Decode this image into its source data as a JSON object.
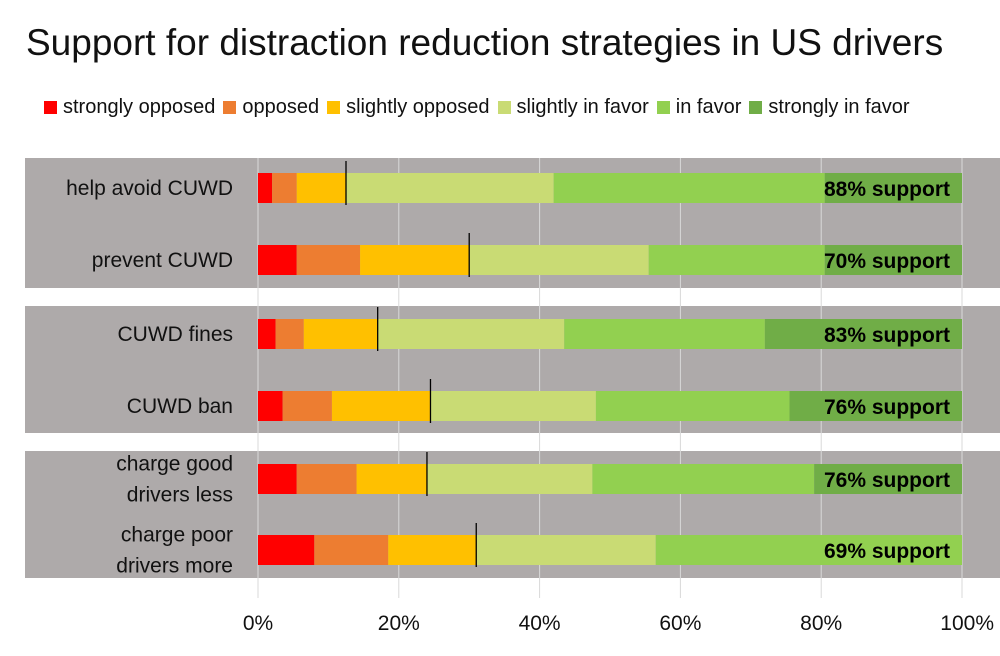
{
  "chart_data": {
    "type": "bar",
    "stacked": true,
    "orientation": "horizontal",
    "title": "Support for distraction reduction strategies in US drivers",
    "xlim": [
      0,
      100
    ],
    "x_ticks": [
      "0%",
      "20%",
      "40%",
      "60%",
      "80%",
      "100%"
    ],
    "grid": true,
    "legend_position": "top",
    "series": [
      {
        "name": "strongly opposed",
        "color": "#ff0000"
      },
      {
        "name": "opposed",
        "color": "#ed7d31"
      },
      {
        "name": "slightly opposed",
        "color": "#ffc000"
      },
      {
        "name": "slightly in favor",
        "color": "#c9db74"
      },
      {
        "name": "in favor",
        "color": "#92d050"
      },
      {
        "name": "strongly in favor",
        "color": "#70ad47"
      }
    ],
    "categories": [
      {
        "label_lines": [
          "help avoid CUWD"
        ],
        "values": [
          2.0,
          3.5,
          7.0,
          29.5,
          38.5,
          19.5
        ],
        "support_label": "88% support",
        "group": 0
      },
      {
        "label_lines": [
          "prevent CUWD"
        ],
        "values": [
          5.5,
          9.0,
          15.5,
          25.5,
          25.0,
          19.5
        ],
        "support_label": "70% support",
        "group": 0
      },
      {
        "label_lines": [
          "CUWD fines"
        ],
        "values": [
          2.5,
          4.0,
          10.5,
          26.5,
          28.5,
          28.0
        ],
        "support_label": "83% support",
        "group": 1
      },
      {
        "label_lines": [
          "CUWD ban"
        ],
        "values": [
          3.5,
          7.0,
          14.0,
          23.5,
          27.5,
          24.5
        ],
        "support_label": "76% support",
        "group": 1
      },
      {
        "label_lines": [
          "charge good",
          "drivers less"
        ],
        "values": [
          5.5,
          8.5,
          10.0,
          23.5,
          31.5,
          21.0
        ],
        "support_label": "76% support",
        "group": 2
      },
      {
        "label_lines": [
          "charge poor",
          "drivers more"
        ],
        "values": [
          8.0,
          10.5,
          12.5,
          25.5,
          43.5,
          0.0
        ],
        "support_label": "69% support",
        "group": 2
      }
    ],
    "group_background": "#aeaaaa"
  }
}
